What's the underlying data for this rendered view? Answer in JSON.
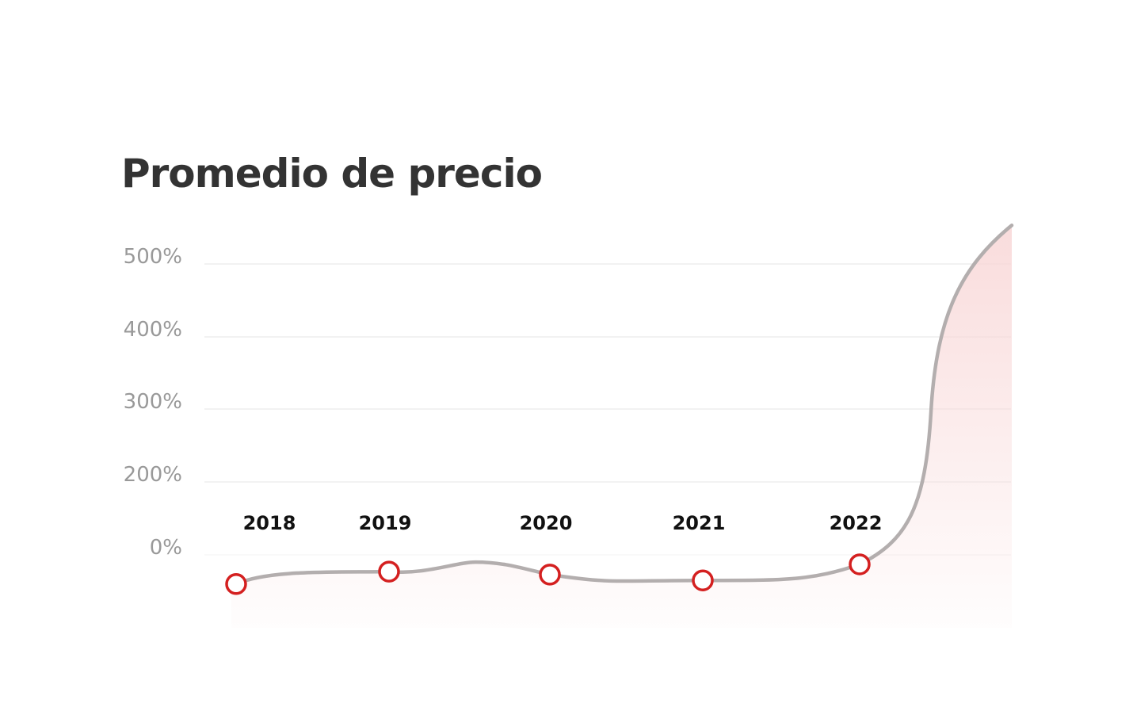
{
  "chart_data": {
    "type": "line",
    "title": "Promedio de precio",
    "xlabel": "",
    "ylabel": "",
    "y_ticks": [
      {
        "value": 500,
        "label": "500%"
      },
      {
        "value": 400,
        "label": "400%"
      },
      {
        "value": 300,
        "label": "300%"
      },
      {
        "value": 200,
        "label": "200%"
      },
      {
        "value": 0,
        "label": "0%"
      }
    ],
    "gridlines": true,
    "line_color": "#b3aeae",
    "marker_color": "#d42020",
    "fill_color": "#f8d6d6",
    "points": [
      {
        "label": "2018",
        "value": -40
      },
      {
        "label": "2019",
        "value": -23
      },
      {
        "label": "2020",
        "value": -27
      },
      {
        "label": "2021",
        "value": -35
      },
      {
        "label": "2022",
        "value": -13
      }
    ],
    "end_value": 553
  }
}
